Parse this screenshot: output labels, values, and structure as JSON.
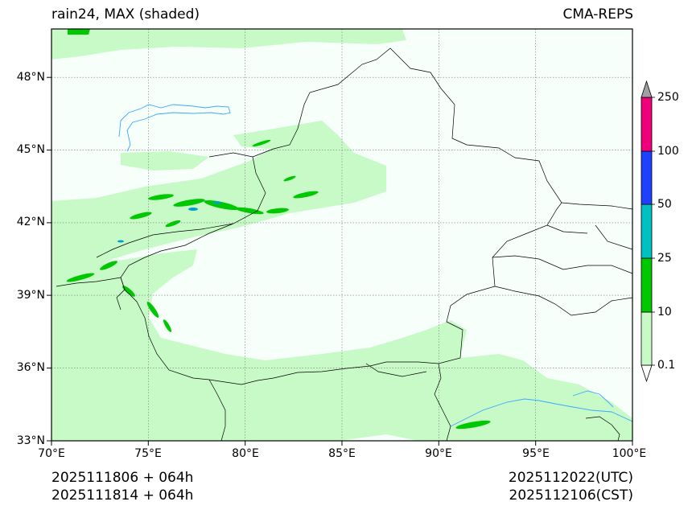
{
  "header": {
    "title_left": "rain24, MAX (shaded)",
    "title_right": "CMA-REPS"
  },
  "map": {
    "lon_range": [
      70,
      100
    ],
    "lat_range": [
      33,
      50
    ],
    "lat_labels": [
      "48°N",
      "45°N",
      "42°N",
      "39°N",
      "36°N",
      "33°N"
    ],
    "lon_labels": [
      "70°E",
      "75°E",
      "80°E",
      "85°E",
      "90°E",
      "95°E",
      "100°E"
    ]
  },
  "colorbar": {
    "levels": [
      "0.1",
      "10",
      "25",
      "50",
      "100",
      "250"
    ],
    "colors": [
      "#c8fac8",
      "#00c800",
      "#00c0c0",
      "#2040ff",
      "#f0007a",
      "#a0a0a0"
    ]
  },
  "footer": {
    "init_utc": "2025111806  +  064h",
    "init_cst": "2025111814  +  064h",
    "valid_utc": "2025112022(UTC)",
    "valid_cst": "2025112106(CST)"
  },
  "colors": {
    "light_rain": "#c8fac8",
    "moderate_rain": "#00c800",
    "heavy_rain": "#00c0c0",
    "water": "#3aa8ff"
  }
}
